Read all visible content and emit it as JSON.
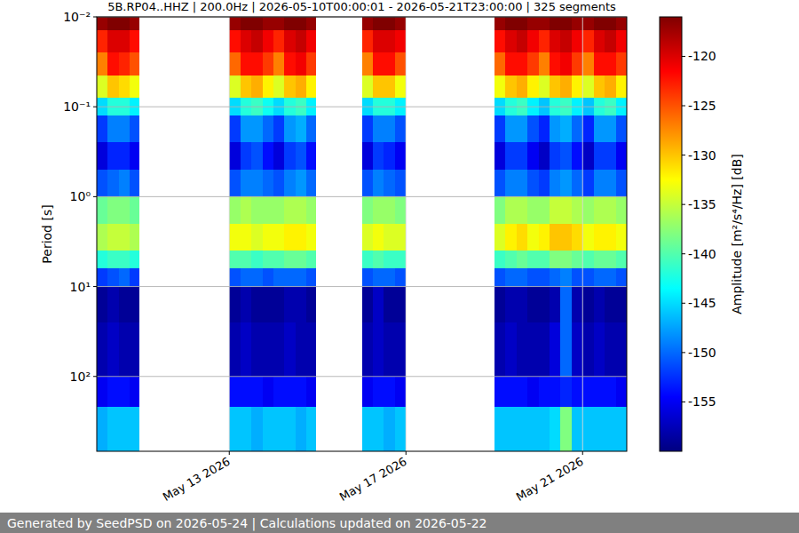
{
  "chart_data": {
    "type": "heatmap",
    "title": "5B.RP04..HHZ | 200.0Hz | 2026-05-10T00:00:01 - 2026-05-21T23:00:00 | 325 segments",
    "y_label": "Period [s]",
    "footer": "Generated by SeedPSD on 2026-05-24 | Calculations updated on 2026-05-22",
    "log": "y",
    "grid": true,
    "color": "jet",
    "xlim": [
      "2026-05-10T00:00:00",
      "2026-05-22T00:00:00"
    ],
    "xticks": [
      {
        "value": "2026-05-13T00:00:00",
        "label": "May 13 2026"
      },
      {
        "value": "2026-05-17T00:00:00",
        "label": "May 17 2026"
      },
      {
        "value": "2026-05-21T00:00:00",
        "label": "May 21 2026"
      }
    ],
    "ylim": [
      680,
      0.01
    ],
    "yticks": [
      {
        "value": 0.01,
        "label": "10⁻²"
      },
      {
        "value": 0.1,
        "label": "10⁻¹"
      },
      {
        "value": 1,
        "label": "10⁰"
      },
      {
        "value": 10,
        "label": "10¹"
      },
      {
        "value": 100,
        "label": "10²"
      }
    ],
    "y_bins": [
      0.01,
      0.014,
      0.025,
      0.045,
      0.08,
      0.125,
      0.25,
      0.5,
      1,
      2,
      4,
      6.3,
      10,
      25,
      100,
      220,
      680
    ],
    "colorbar": {
      "label": "Amplitude [m²/s⁴/Hz] [dB]",
      "range": [
        -160,
        -116
      ],
      "ticks": [
        -155,
        -150,
        -145,
        -140,
        -135,
        -130,
        -125,
        -120
      ]
    },
    "columns": [
      {
        "start": "2026-05-10T00:00:00",
        "end": "2026-05-10T06:00:00",
        "values": [
          -117,
          -123,
          -127,
          -134,
          -145,
          -152,
          -156,
          -151,
          -139,
          -136,
          -142,
          -152,
          -159,
          -158,
          -155,
          -147
        ]
      },
      {
        "start": "2026-05-10T06:00:00",
        "end": "2026-05-10T12:00:00",
        "values": [
          -116,
          -120,
          -122,
          -130,
          -142,
          -149,
          -153,
          -150,
          -138,
          -135,
          -141,
          -151,
          -158,
          -157,
          -154,
          -146
        ]
      },
      {
        "start": "2026-05-10T12:00:00",
        "end": "2026-05-10T18:00:00",
        "values": [
          -116,
          -120,
          -123,
          -131,
          -142,
          -149,
          -153,
          -149,
          -138,
          -135,
          -141,
          -150,
          -159,
          -158,
          -154,
          -146
        ]
      },
      {
        "start": "2026-05-10T18:00:00",
        "end": "2026-05-10T23:00:00",
        "values": [
          -117,
          -122,
          -125,
          -133,
          -144,
          -151,
          -155,
          -151,
          -139,
          -136,
          -142,
          -152,
          -159,
          -158,
          -155,
          -146
        ]
      },
      {
        "start": "2026-05-13T00:00:00",
        "end": "2026-05-13T06:00:00",
        "values": [
          -117,
          -122,
          -126,
          -134,
          -145,
          -152,
          -156,
          -151,
          -137,
          -133,
          -140,
          -151,
          -159,
          -158,
          -154,
          -146
        ]
      },
      {
        "start": "2026-05-13T06:00:00",
        "end": "2026-05-13T12:00:00",
        "values": [
          -116,
          -120,
          -122,
          -130,
          -142,
          -148,
          -152,
          -149,
          -136,
          -133,
          -140,
          -150,
          -158,
          -157,
          -154,
          -146
        ]
      },
      {
        "start": "2026-05-13T12:00:00",
        "end": "2026-05-13T18:00:00",
        "values": [
          -116,
          -119,
          -122,
          -129,
          -141,
          -148,
          -151,
          -149,
          -137,
          -134,
          -141,
          -150,
          -159,
          -158,
          -154,
          -147
        ]
      },
      {
        "start": "2026-05-13T18:00:00",
        "end": "2026-05-14T00:00:00",
        "values": [
          -117,
          -121,
          -124,
          -132,
          -143,
          -150,
          -154,
          -150,
          -137,
          -133,
          -140,
          -151,
          -159,
          -158,
          -155,
          -146
        ]
      },
      {
        "start": "2026-05-14T00:00:00",
        "end": "2026-05-14T06:00:00",
        "values": [
          -117,
          -123,
          -127,
          -134,
          -145,
          -152,
          -156,
          -151,
          -137,
          -133,
          -140,
          -150,
          -159,
          -158,
          -154,
          -146
        ]
      },
      {
        "start": "2026-05-14T06:00:00",
        "end": "2026-05-14T12:00:00",
        "values": [
          -116,
          -120,
          -122,
          -130,
          -142,
          -148,
          -152,
          -149,
          -136,
          -132,
          -139,
          -150,
          -158,
          -157,
          -154,
          -146
        ]
      },
      {
        "start": "2026-05-14T12:00:00",
        "end": "2026-05-14T18:00:00",
        "values": [
          -116,
          -119,
          -121,
          -129,
          -141,
          -147,
          -151,
          -148,
          -136,
          -132,
          -139,
          -150,
          -158,
          -158,
          -154,
          -147
        ]
      },
      {
        "start": "2026-05-14T18:00:00",
        "end": "2026-05-14T23:00:00",
        "values": [
          -117,
          -121,
          -124,
          -132,
          -144,
          -150,
          -154,
          -150,
          -137,
          -133,
          -140,
          -151,
          -159,
          -158,
          -155,
          -146
        ]
      },
      {
        "start": "2026-05-16T00:00:00",
        "end": "2026-05-16T06:00:00",
        "values": [
          -117,
          -123,
          -127,
          -134,
          -145,
          -152,
          -156,
          -151,
          -138,
          -134,
          -141,
          -151,
          -159,
          -158,
          -155,
          -146
        ]
      },
      {
        "start": "2026-05-16T06:00:00",
        "end": "2026-05-16T12:00:00",
        "values": [
          -116,
          -120,
          -122,
          -130,
          -142,
          -149,
          -152,
          -149,
          -137,
          -133,
          -140,
          -150,
          -157,
          -157,
          -154,
          -146
        ]
      },
      {
        "start": "2026-05-16T12:00:00",
        "end": "2026-05-16T18:00:00",
        "values": [
          -116,
          -120,
          -122,
          -130,
          -142,
          -149,
          -153,
          -150,
          -137,
          -134,
          -141,
          -150,
          -159,
          -158,
          -154,
          -147
        ]
      },
      {
        "start": "2026-05-16T18:00:00",
        "end": "2026-05-17T00:00:00",
        "values": [
          -117,
          -121,
          -125,
          -133,
          -144,
          -151,
          -155,
          -151,
          -138,
          -134,
          -141,
          -151,
          -159,
          -158,
          -155,
          -146
        ]
      },
      {
        "start": "2026-05-19T00:00:00",
        "end": "2026-05-19T06:00:00",
        "values": [
          -117,
          -122,
          -126,
          -133,
          -145,
          -152,
          -156,
          -151,
          -138,
          -134,
          -141,
          -151,
          -159,
          -158,
          -154,
          -146
        ]
      },
      {
        "start": "2026-05-19T06:00:00",
        "end": "2026-05-19T12:00:00",
        "values": [
          -116,
          -120,
          -122,
          -130,
          -142,
          -148,
          -152,
          -149,
          -136,
          -132,
          -140,
          -150,
          -158,
          -157,
          -154,
          -146
        ]
      },
      {
        "start": "2026-05-19T12:00:00",
        "end": "2026-05-19T18:00:00",
        "values": [
          -116,
          -119,
          -122,
          -129,
          -141,
          -148,
          -152,
          -149,
          -136,
          -131,
          -139,
          -150,
          -158,
          -158,
          -154,
          -146
        ]
      },
      {
        "start": "2026-05-19T18:00:00",
        "end": "2026-05-20T00:00:00",
        "values": [
          -117,
          -121,
          -124,
          -132,
          -144,
          -151,
          -155,
          -151,
          -137,
          -133,
          -140,
          -151,
          -159,
          -158,
          -155,
          -146
        ]
      },
      {
        "start": "2026-05-20T00:00:00",
        "end": "2026-05-20T06:00:00",
        "values": [
          -117,
          -123,
          -127,
          -134,
          -146,
          -153,
          -157,
          -152,
          -137,
          -132,
          -140,
          -151,
          -159,
          -158,
          -154,
          -146
        ]
      },
      {
        "start": "2026-05-20T06:00:00",
        "end": "2026-05-20T12:00:00",
        "values": [
          -116,
          -120,
          -122,
          -130,
          -142,
          -148,
          -152,
          -149,
          -135,
          -130,
          -138,
          -150,
          -158,
          -156,
          -154,
          -145
        ]
      },
      {
        "start": "2026-05-20T12:00:00",
        "end": "2026-05-20T18:00:00",
        "values": [
          -116,
          -119,
          -121,
          -129,
          -141,
          -147,
          -151,
          -148,
          -135,
          -130,
          -138,
          -149,
          -150,
          -150,
          -153,
          -138
        ]
      },
      {
        "start": "2026-05-20T18:00:00",
        "end": "2026-05-21T00:00:00",
        "values": [
          -117,
          -121,
          -124,
          -132,
          -144,
          -150,
          -154,
          -150,
          -136,
          -131,
          -139,
          -151,
          -158,
          -157,
          -154,
          -146
        ]
      },
      {
        "start": "2026-05-21T00:00:00",
        "end": "2026-05-21T06:00:00",
        "values": [
          -117,
          -123,
          -127,
          -134,
          -146,
          -153,
          -157,
          -152,
          -137,
          -133,
          -140,
          -151,
          -159,
          -158,
          -154,
          -146
        ]
      },
      {
        "start": "2026-05-21T06:00:00",
        "end": "2026-05-21T12:00:00",
        "values": [
          -116,
          -120,
          -122,
          -130,
          -142,
          -148,
          -152,
          -149,
          -136,
          -132,
          -139,
          -150,
          -158,
          -157,
          -154,
          -146
        ]
      },
      {
        "start": "2026-05-21T12:00:00",
        "end": "2026-05-21T18:00:00",
        "values": [
          -116,
          -119,
          -122,
          -129,
          -141,
          -148,
          -152,
          -149,
          -136,
          -132,
          -139,
          -150,
          -159,
          -158,
          -154,
          -146
        ]
      },
      {
        "start": "2026-05-21T18:00:00",
        "end": "2026-05-22T00:00:00",
        "values": [
          -117,
          -121,
          -124,
          -132,
          -144,
          -151,
          -155,
          -151,
          -137,
          -133,
          -140,
          -151,
          -159,
          -158,
          -155,
          -146
        ]
      }
    ]
  }
}
